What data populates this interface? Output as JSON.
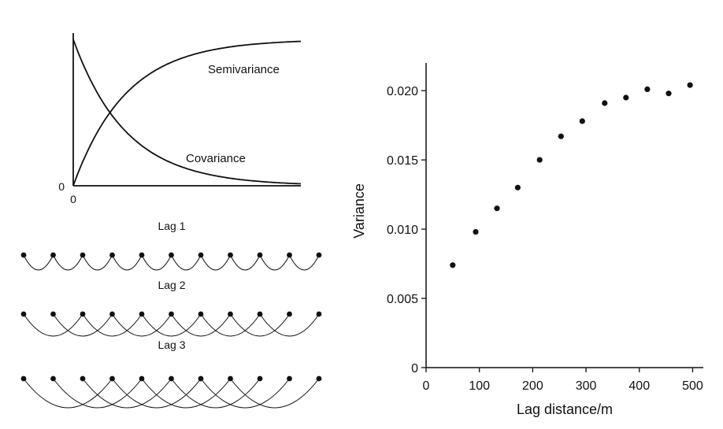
{
  "chart_data": [
    {
      "type": "line",
      "curve_labels": [
        "Semivariance",
        "Covariance"
      ],
      "x_tick_labels": [
        "0"
      ],
      "y_tick_labels": [
        "0"
      ],
      "series": [
        {
          "name": "Semivariance",
          "shape": "rising exponential from 0 toward sill"
        },
        {
          "name": "Covariance",
          "shape": "decaying exponential from sill toward 0"
        }
      ]
    },
    {
      "type": "diagram",
      "point_count": 11,
      "lags": [
        {
          "label": "Lag 1",
          "step": 1
        },
        {
          "label": "Lag 2",
          "step": 2
        },
        {
          "label": "Lag 3",
          "step": 3
        }
      ]
    },
    {
      "type": "scatter",
      "xlabel": "Lag distance/m",
      "ylabel": "Variance",
      "xlim": [
        0,
        520
      ],
      "ylim": [
        0,
        0.022
      ],
      "x_ticks": [
        "0",
        "100",
        "200",
        "300",
        "400",
        "500"
      ],
      "y_ticks": [
        "0",
        "0.005",
        "0.010",
        "0.015",
        "0.020"
      ],
      "x": [
        50,
        93,
        133,
        172,
        213,
        253,
        293,
        335,
        375,
        415,
        455,
        495
      ],
      "y": [
        0.0074,
        0.0098,
        0.0115,
        0.013,
        0.015,
        0.0167,
        0.0178,
        0.0191,
        0.0195,
        0.0201,
        0.0198,
        0.0204
      ]
    }
  ]
}
